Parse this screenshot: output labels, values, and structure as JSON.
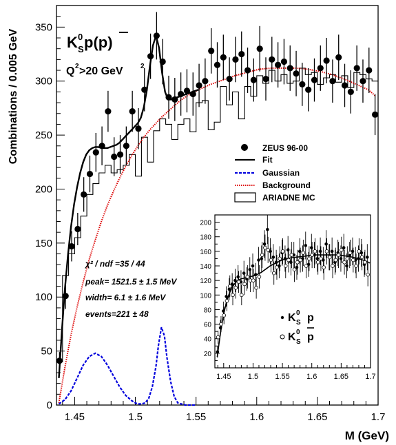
{
  "chart_data": [
    {
      "type": "scatter",
      "xlabel": "M (GeV)",
      "ylabel": "Combinations / 0.005 GeV",
      "xlim": [
        1.435,
        1.7
      ],
      "ylim": [
        0,
        370
      ],
      "x_ticks": [
        "1.45",
        "1.5",
        "1.55",
        "1.6",
        "1.65",
        "1.7"
      ],
      "y_ticks": [
        "0",
        "50",
        "100",
        "150",
        "200",
        "250",
        "300",
        "350"
      ],
      "title_main": "K",
      "title_sup": "0",
      "title_sub": "S",
      "title_rest": " p(p)",
      "q2_label": "Q",
      "q2_sup1": "2",
      "q2_mid": ">20 GeV",
      "q2_sup2": "2",
      "stats": {
        "chi2": "χ² / ndf =35 / 44",
        "peak": "peak= 1521.5 ± 1.5 MeV",
        "width": "width=    6.1 ± 1.6 MeV",
        "events": "events=221 ± 48"
      },
      "legend": {
        "placement": "right",
        "entries": [
          {
            "label": "ZEUS 96-00",
            "style": "marker",
            "color": "#000000"
          },
          {
            "label": "Fit",
            "style": "solid",
            "color": "#000000"
          },
          {
            "label": "Gaussian",
            "style": "dashed",
            "color": "#0000dd"
          },
          {
            "label": "Background",
            "style": "dotted",
            "color": "#dd0000"
          },
          {
            "label": "ARIADNE MC",
            "style": "box",
            "color": "#000000"
          }
        ]
      },
      "series": [
        {
          "name": "ZEUS 96-00",
          "type": "scatter",
          "x": [
            1.4375,
            1.4425,
            1.4475,
            1.4525,
            1.4575,
            1.4625,
            1.4675,
            1.4725,
            1.4775,
            1.4825,
            1.4875,
            1.4925,
            1.4975,
            1.5025,
            1.5075,
            1.5125,
            1.5175,
            1.5225,
            1.5275,
            1.5325,
            1.5375,
            1.5425,
            1.5475,
            1.5525,
            1.5575,
            1.5625,
            1.5675,
            1.5725,
            1.5775,
            1.5825,
            1.5875,
            1.5925,
            1.5975,
            1.6025,
            1.6075,
            1.6125,
            1.6175,
            1.6225,
            1.6275,
            1.6325,
            1.6375,
            1.6425,
            1.6475,
            1.6525,
            1.6575,
            1.6625,
            1.6675,
            1.6725,
            1.6775,
            1.6825,
            1.6875,
            1.6925,
            1.6975
          ],
          "y": [
            41,
            101,
            147,
            163,
            195,
            214,
            234,
            240,
            272,
            230,
            232,
            240,
            272,
            256,
            292,
            323,
            342,
            318,
            285,
            283,
            288,
            291,
            288,
            296,
            300,
            328,
            315,
            322,
            302,
            320,
            325,
            310,
            301,
            330,
            302,
            320,
            315,
            318,
            312,
            307,
            297,
            292,
            301,
            312,
            319,
            300,
            322,
            296,
            290,
            312,
            300,
            310,
            269
          ],
          "err": [
            8,
            12,
            14,
            15,
            16,
            17,
            18,
            18,
            19,
            18,
            18,
            18,
            19,
            19,
            20,
            21,
            22,
            21,
            20,
            20,
            20,
            20,
            20,
            20,
            21,
            21,
            21,
            21,
            20,
            21,
            21,
            21,
            20,
            21,
            20,
            21,
            21,
            21,
            21,
            21,
            20,
            20,
            20,
            21,
            21,
            20,
            21,
            20,
            20,
            21,
            20,
            21,
            19
          ]
        },
        {
          "name": "Fit",
          "type": "line",
          "x": [
            1.437,
            1.4395,
            1.442,
            1.4445,
            1.447,
            1.4495,
            1.452,
            1.4545,
            1.457,
            1.4595,
            1.462,
            1.4645,
            1.467,
            1.4695,
            1.472,
            1.4745,
            1.477,
            1.4795,
            1.482,
            1.4845,
            1.487,
            1.4895,
            1.492,
            1.4945,
            1.497,
            1.4995,
            1.502,
            1.5045,
            1.507,
            1.5095,
            1.512,
            1.5145,
            1.517,
            1.5195,
            1.522,
            1.5245,
            1.527,
            1.5295,
            1.532,
            1.5345,
            1.537,
            1.5395,
            1.542,
            1.5445,
            1.547,
            1.5495,
            1.552
          ],
          "y": [
            25,
            69,
            108,
            139,
            165,
            186,
            202,
            215,
            225,
            232,
            236,
            238,
            239,
            239,
            238,
            238,
            238,
            239,
            240,
            241,
            243,
            246,
            249,
            252,
            255,
            258,
            261,
            266,
            276,
            292,
            314,
            333,
            342,
            331,
            308,
            290,
            283,
            283,
            284,
            285,
            286,
            287,
            288,
            289,
            290,
            291,
            292
          ]
        },
        {
          "name": "Gaussian",
          "type": "line",
          "x": [
            1.437,
            1.442,
            1.447,
            1.452,
            1.457,
            1.462,
            1.467,
            1.472,
            1.477,
            1.482,
            1.487,
            1.492,
            1.497,
            1.5,
            1.502,
            1.505,
            1.508,
            1.511,
            1.514,
            1.517,
            1.519,
            1.5215,
            1.524,
            1.526,
            1.529,
            1.532,
            1.535,
            1.538,
            1.541,
            1.545,
            1.55
          ],
          "y": [
            1,
            5,
            13,
            25,
            37,
            45,
            48,
            45,
            37,
            27,
            17,
            9,
            4,
            2,
            1,
            1,
            2,
            6,
            17,
            36,
            55,
            72,
            64,
            44,
            22,
            8,
            2,
            1,
            0,
            0,
            0
          ]
        },
        {
          "name": "Background",
          "type": "line",
          "x": [
            1.437,
            1.442,
            1.447,
            1.452,
            1.457,
            1.462,
            1.467,
            1.472,
            1.477,
            1.482,
            1.487,
            1.492,
            1.497,
            1.502,
            1.507,
            1.512,
            1.517,
            1.522,
            1.527,
            1.532,
            1.537,
            1.542,
            1.547,
            1.552,
            1.562,
            1.572,
            1.582,
            1.592,
            1.602,
            1.612,
            1.622,
            1.632,
            1.642,
            1.652,
            1.662,
            1.672,
            1.682,
            1.692,
            1.698
          ],
          "y": [
            2,
            35,
            65,
            91,
            114,
            135,
            153,
            170,
            185,
            198,
            210,
            221,
            231,
            240,
            248,
            255,
            261,
            267,
            272,
            277,
            282,
            286,
            289,
            292,
            297,
            301,
            305,
            308,
            311,
            312,
            312,
            312,
            311,
            309,
            306,
            302,
            297,
            292,
            286
          ]
        },
        {
          "name": "ARIADNE MC",
          "type": "step",
          "x": [
            1.435,
            1.44,
            1.445,
            1.45,
            1.455,
            1.46,
            1.465,
            1.47,
            1.475,
            1.48,
            1.485,
            1.49,
            1.495,
            1.5,
            1.505,
            1.51,
            1.515,
            1.52,
            1.525,
            1.53,
            1.535,
            1.54,
            1.545,
            1.55,
            1.555,
            1.56,
            1.565,
            1.57,
            1.575,
            1.58,
            1.585,
            1.59,
            1.595,
            1.6,
            1.605,
            1.61,
            1.615,
            1.62,
            1.625,
            1.63,
            1.635,
            1.64,
            1.645,
            1.65,
            1.655,
            1.66,
            1.665,
            1.67,
            1.675,
            1.68,
            1.685,
            1.69,
            1.695
          ],
          "y": [
            40,
            120,
            140,
            155,
            175,
            195,
            205,
            215,
            222,
            215,
            218,
            222,
            232,
            212,
            248,
            225,
            254,
            265,
            260,
            246,
            260,
            265,
            253,
            280,
            282,
            255,
            262,
            295,
            278,
            290,
            265,
            295,
            286,
            305,
            298,
            310,
            300,
            306,
            298,
            300,
            312,
            306,
            308,
            297,
            303,
            306,
            299,
            305,
            294,
            308,
            306,
            302,
            300
          ]
        }
      ]
    },
    {
      "type": "scatter",
      "title": "",
      "xlim": [
        1.435,
        1.7
      ],
      "ylim": [
        0,
        210
      ],
      "x_ticks": [
        "1.45",
        "1.5",
        "1.55",
        "1.6",
        "1.65",
        "1.7"
      ],
      "y_ticks": [
        "20",
        "40",
        "60",
        "80",
        "100",
        "120",
        "140",
        "160",
        "180",
        "200"
      ],
      "legend": {
        "placement": "bottom-right",
        "entries": [
          {
            "label": "p",
            "k": "K",
            "sup": "0",
            "sub": "S",
            "marker": "filled",
            "bar": false
          },
          {
            "label": "p",
            "k": "K",
            "sup": "0",
            "sub": "S",
            "marker": "open",
            "bar": true
          }
        ]
      },
      "series": [
        {
          "name": "p",
          "marker": "filled",
          "x": [
            1.4395,
            1.4445,
            1.4495,
            1.4545,
            1.4595,
            1.4645,
            1.4695,
            1.4745,
            1.4795,
            1.4845,
            1.4895,
            1.4945,
            1.4995,
            1.5045,
            1.5095,
            1.5145,
            1.5195,
            1.5245,
            1.5295,
            1.5345,
            1.5395,
            1.5445,
            1.5495,
            1.5545,
            1.5595,
            1.5645,
            1.5695,
            1.5745,
            1.5795,
            1.5845,
            1.5895,
            1.5945,
            1.5995,
            1.6045,
            1.6095,
            1.6145,
            1.6195,
            1.6245,
            1.6295,
            1.6345,
            1.6395,
            1.6445,
            1.6495,
            1.6545,
            1.6595,
            1.6645,
            1.6695,
            1.6745,
            1.6795,
            1.6845,
            1.6895,
            1.6945
          ],
          "y": [
            22,
            55,
            78,
            98,
            108,
            115,
            120,
            125,
            118,
            130,
            122,
            135,
            140,
            128,
            148,
            150,
            170,
            190,
            160,
            152,
            145,
            140,
            158,
            150,
            162,
            145,
            155,
            138,
            160,
            150,
            168,
            142,
            165,
            155,
            150,
            160,
            148,
            170,
            152,
            160,
            145,
            158,
            150,
            165,
            140,
            155,
            160,
            148,
            150,
            158,
            142,
            152
          ],
          "err": [
            8,
            11,
            13,
            14,
            15,
            15,
            16,
            16,
            16,
            17,
            16,
            17,
            17,
            16,
            18,
            18,
            19,
            20,
            18,
            18,
            17,
            17,
            18,
            18,
            19,
            18,
            18,
            17,
            18,
            18,
            19,
            17,
            19,
            18,
            18,
            19,
            18,
            19,
            18,
            19,
            17,
            18,
            18,
            19,
            17,
            18,
            19,
            18,
            18,
            19,
            17,
            18
          ]
        },
        {
          "name": "p̄",
          "marker": "open",
          "x": [
            1.4405,
            1.4455,
            1.4505,
            1.4555,
            1.4605,
            1.4655,
            1.4705,
            1.4755,
            1.4805,
            1.4855,
            1.4905,
            1.4955,
            1.5005,
            1.5055,
            1.5105,
            1.5155,
            1.5205,
            1.5255,
            1.5305,
            1.5355,
            1.5405,
            1.5455,
            1.5505,
            1.5555,
            1.5605,
            1.5655,
            1.5705,
            1.5755,
            1.5805,
            1.5855,
            1.5905,
            1.5955,
            1.6005,
            1.6055,
            1.6105,
            1.6155,
            1.6205,
            1.6255,
            1.6305,
            1.6355,
            1.6405,
            1.6455,
            1.6505,
            1.6555,
            1.6605,
            1.6655,
            1.6705,
            1.6755,
            1.6805,
            1.6855,
            1.6905,
            1.6955
          ],
          "y": [
            42,
            60,
            72,
            92,
            112,
            100,
            110,
            118,
            100,
            115,
            125,
            120,
            120,
            110,
            125,
            155,
            165,
            162,
            148,
            130,
            138,
            150,
            160,
            140,
            148,
            155,
            135,
            145,
            148,
            158,
            140,
            150,
            155,
            160,
            145,
            150,
            138,
            160,
            152,
            140,
            148,
            155,
            162,
            145,
            150,
            158,
            148,
            140,
            160,
            152,
            145,
            128
          ],
          "err": [
            9,
            11,
            12,
            14,
            15,
            14,
            15,
            15,
            14,
            15,
            16,
            16,
            16,
            15,
            16,
            18,
            18,
            18,
            17,
            16,
            17,
            17,
            18,
            17,
            17,
            18,
            17,
            17,
            17,
            18,
            17,
            17,
            18,
            18,
            17,
            17,
            17,
            18,
            18,
            17,
            17,
            18,
            18,
            17,
            17,
            18,
            17,
            17,
            18,
            18,
            17,
            16
          ]
        },
        {
          "name": "fit",
          "type": "line",
          "x": [
            1.439,
            1.444,
            1.449,
            1.454,
            1.459,
            1.464,
            1.469,
            1.474,
            1.479,
            1.484,
            1.489,
            1.494,
            1.499,
            1.504,
            1.509,
            1.514,
            1.519,
            1.524,
            1.529,
            1.534,
            1.539,
            1.544,
            1.549,
            1.554,
            1.564,
            1.574,
            1.584,
            1.594,
            1.604,
            1.614,
            1.624,
            1.634,
            1.644,
            1.654,
            1.664,
            1.674,
            1.684,
            1.694,
            1.699
          ],
          "y": [
            15,
            45,
            70,
            88,
            101,
            110,
            116,
            120,
            122,
            123,
            124,
            125,
            126,
            127,
            129,
            131,
            134,
            137,
            140,
            142,
            144,
            146,
            148,
            149,
            151,
            152,
            153,
            154,
            155,
            155,
            155,
            155,
            155,
            154,
            153,
            151,
            149,
            146,
            144
          ]
        }
      ]
    }
  ]
}
